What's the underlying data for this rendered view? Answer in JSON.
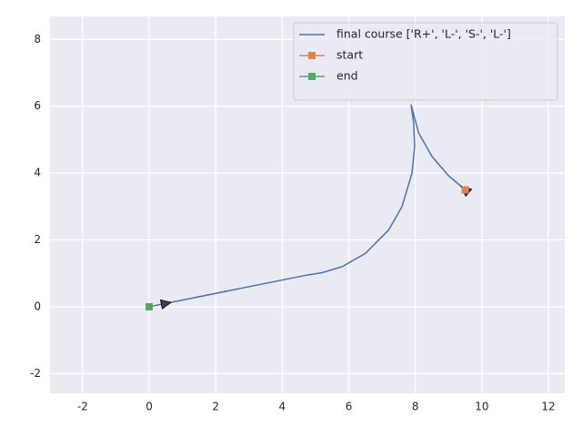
{
  "chart_data": {
    "type": "line",
    "series": [
      {
        "name": "final course ['R+', 'L-', 'S-', 'L-']",
        "color": "#4c72b0",
        "x": [
          9.5,
          9.0,
          8.5,
          8.1,
          7.87,
          7.95,
          7.98,
          7.9,
          7.6,
          7.2,
          6.5,
          5.8,
          5.2,
          4.75,
          0.5,
          0
        ],
        "values": [
          3.5,
          3.92,
          4.5,
          5.2,
          6.05,
          5.5,
          4.8,
          4.0,
          3.0,
          2.3,
          1.6,
          1.2,
          1.02,
          0.95,
          0.1,
          0
        ]
      },
      {
        "name": "start",
        "color": "#dd8452",
        "marker": "square",
        "x": [
          9.5
        ],
        "values": [
          3.5
        ]
      },
      {
        "name": "end",
        "color": "#55a868",
        "marker": "square",
        "x": [
          0
        ],
        "values": [
          0
        ]
      }
    ],
    "xlim": [
      -2.98,
      12.49
    ],
    "ylim": [
      -2.59,
      8.69
    ],
    "xticks": [
      -2,
      0,
      2,
      4,
      6,
      8,
      10,
      12
    ],
    "yticks": [
      -2,
      0,
      2,
      4,
      6,
      8
    ],
    "grid": true,
    "legend": "upper right"
  }
}
